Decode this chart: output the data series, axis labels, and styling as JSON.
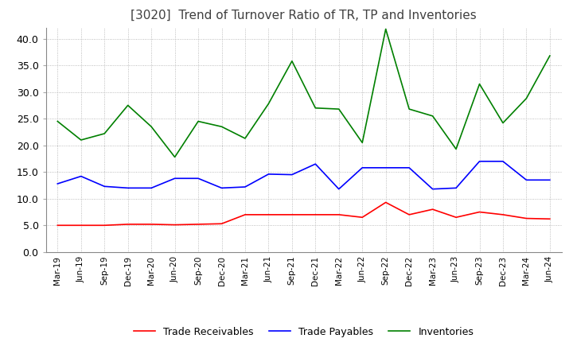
{
  "title": "[3020]  Trend of Turnover Ratio of TR, TP and Inventories",
  "ylim": [
    0,
    42
  ],
  "yticks": [
    0.0,
    5.0,
    10.0,
    15.0,
    20.0,
    25.0,
    30.0,
    35.0,
    40.0
  ],
  "ytick_labels": [
    "0.0",
    "5.0",
    "10.0",
    "15.0",
    "20.0",
    "25.0",
    "30.0",
    "35.0",
    "40.0"
  ],
  "x_labels": [
    "Mar-19",
    "Jun-19",
    "Sep-19",
    "Dec-19",
    "Mar-20",
    "Jun-20",
    "Sep-20",
    "Dec-20",
    "Mar-21",
    "Jun-21",
    "Sep-21",
    "Dec-21",
    "Mar-22",
    "Jun-22",
    "Sep-22",
    "Dec-22",
    "Mar-23",
    "Jun-23",
    "Sep-23",
    "Dec-23",
    "Mar-24",
    "Jun-24"
  ],
  "trade_receivables": [
    5.0,
    5.0,
    5.0,
    5.2,
    5.2,
    5.1,
    5.2,
    5.3,
    7.0,
    7.0,
    7.0,
    7.0,
    7.0,
    6.5,
    9.3,
    7.0,
    8.0,
    6.5,
    7.5,
    7.0,
    6.3,
    6.2
  ],
  "trade_payables": [
    12.8,
    14.2,
    12.3,
    12.0,
    12.0,
    13.8,
    13.8,
    12.0,
    12.2,
    14.6,
    14.5,
    16.5,
    11.8,
    15.8,
    15.8,
    15.8,
    11.8,
    12.0,
    17.0,
    17.0,
    13.5,
    13.5
  ],
  "inventories": [
    24.5,
    21.0,
    22.2,
    27.5,
    23.5,
    17.8,
    24.5,
    23.5,
    21.3,
    27.8,
    35.8,
    27.0,
    26.8,
    20.5,
    41.8,
    26.8,
    25.5,
    19.3,
    31.5,
    24.2,
    28.8,
    36.8
  ],
  "tr_color": "#ff0000",
  "tp_color": "#0000ff",
  "inv_color": "#008000",
  "legend_labels": [
    "Trade Receivables",
    "Trade Payables",
    "Inventories"
  ],
  "background_color": "#ffffff",
  "grid_color": "#aaaaaa"
}
